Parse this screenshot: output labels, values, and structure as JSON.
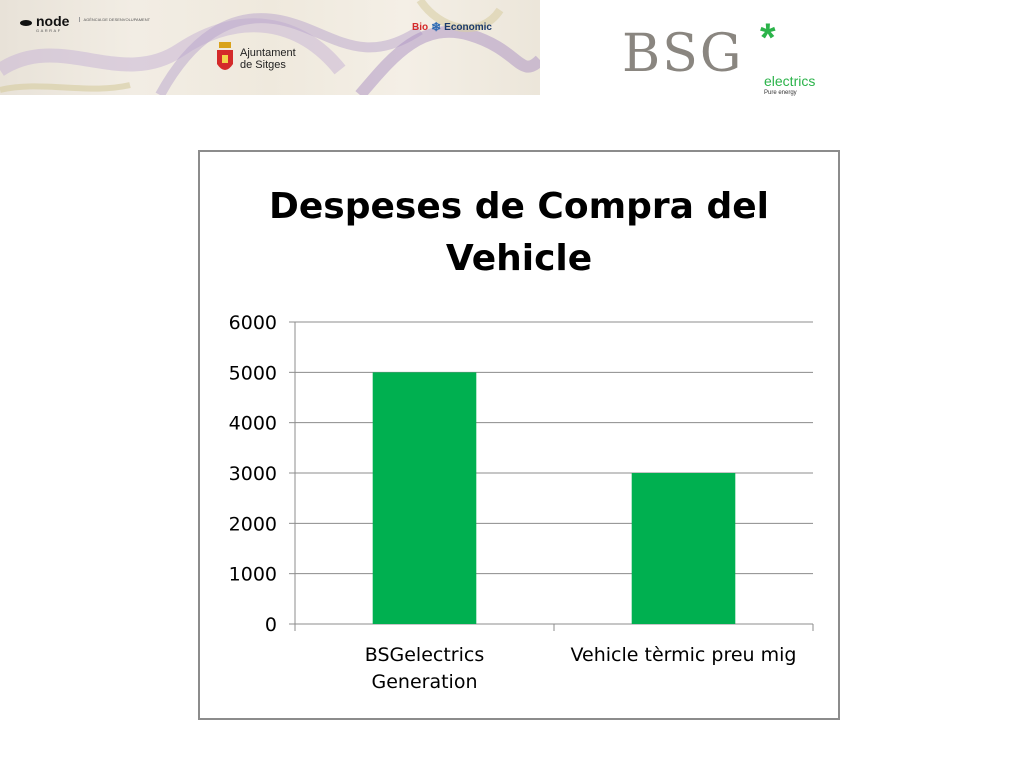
{
  "header": {
    "logos": {
      "node": {
        "name": "node",
        "subtitle": "GARRAF",
        "agency": "AGÈNCIA DE DESENVOLUPAMENT"
      },
      "ajuntament": {
        "line1": "Ajuntament",
        "line2": "de Sitges"
      },
      "bioeconomic": {
        "bio": "Bio",
        "economic": "Economic"
      },
      "bsg": {
        "main": "BSG",
        "asterisk": "*",
        "electrics": "electrics",
        "tagline": "Pure energy"
      }
    }
  },
  "chart_data": {
    "type": "bar",
    "title_line1": "Despeses de Compra del",
    "title_line2": "Vehicle",
    "categories": [
      [
        "BSGelectrics",
        "Generation"
      ],
      [
        "Vehicle tèrmic preu mig"
      ]
    ],
    "values": [
      5000,
      3000
    ],
    "ylim": [
      0,
      6000
    ],
    "yticks": [
      0,
      1000,
      2000,
      3000,
      4000,
      5000,
      6000
    ],
    "grid": true,
    "legend": "none",
    "bar_color": "#00b050"
  }
}
